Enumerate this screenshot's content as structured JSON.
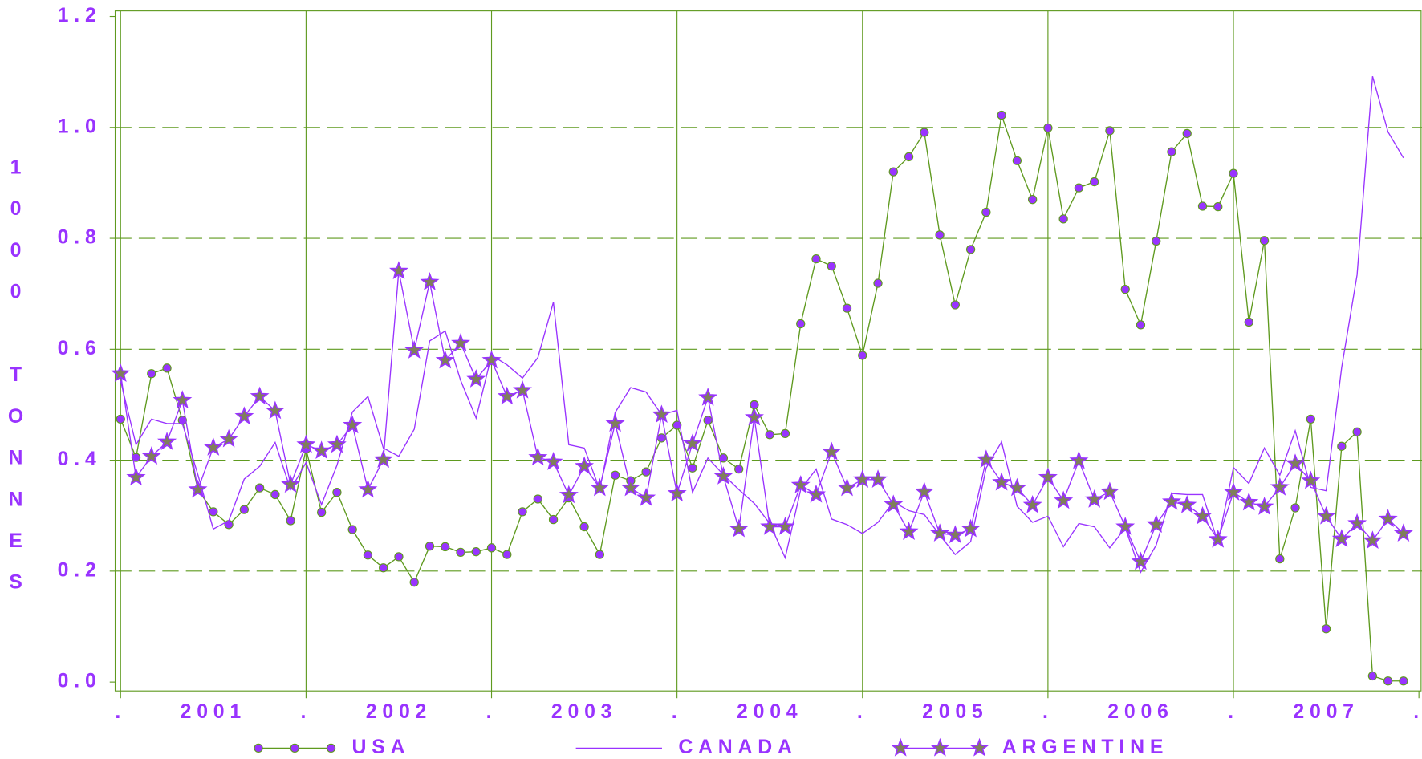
{
  "chart_data": {
    "type": "line",
    "y_label": "1000 TONNES",
    "x": [
      0,
      1,
      2,
      3,
      4,
      5,
      6,
      7,
      8,
      9,
      10,
      11,
      12,
      13,
      14,
      15,
      16,
      17,
      18,
      19,
      20,
      21,
      22,
      23,
      24,
      25,
      26,
      27,
      28,
      29,
      30,
      31,
      32,
      33,
      34,
      35,
      36,
      37,
      38,
      39,
      40,
      41,
      42,
      43,
      44,
      45,
      46,
      47,
      48,
      49,
      50,
      51,
      52,
      53,
      54,
      55,
      56,
      57,
      58,
      59,
      60,
      61,
      62,
      63,
      64,
      65,
      66,
      67,
      68,
      69,
      70,
      71,
      72,
      73,
      74,
      75,
      76,
      77,
      78,
      79,
      80,
      81,
      82,
      83
    ],
    "xlim": [
      -0.35,
      84.2
    ],
    "xticks": [
      {
        "value": 0,
        "label": "."
      },
      {
        "value": 12,
        "label": "."
      },
      {
        "value": 24,
        "label": "."
      },
      {
        "value": 36,
        "label": "."
      },
      {
        "value": 48,
        "label": "."
      },
      {
        "value": 60,
        "label": "."
      },
      {
        "value": 72,
        "label": "."
      },
      {
        "value": 84,
        "label": "."
      }
    ],
    "x_labels": [
      {
        "value": 6,
        "label": "2001"
      },
      {
        "value": 18,
        "label": "2002"
      },
      {
        "value": 30,
        "label": "2003"
      },
      {
        "value": 42,
        "label": "2004"
      },
      {
        "value": 54,
        "label": "2005"
      },
      {
        "value": 66,
        "label": "2006"
      },
      {
        "value": 78,
        "label": "2007"
      }
    ],
    "ylim": [
      -0.016,
      1.21
    ],
    "yticks": [
      {
        "value": 0,
        "label": "0.0"
      },
      0.2,
      0.4,
      0.6,
      0.8,
      {
        "value": 1,
        "label": "1.0"
      },
      1.2
    ],
    "grid": true,
    "series": [
      {
        "name": "USA",
        "color": "#5f9a1f",
        "marker": "circle",
        "marker_color": "#9933ff",
        "values": [
          0.474,
          0.405,
          0.556,
          0.566,
          0.472,
          0.347,
          0.307,
          0.284,
          0.311,
          0.35,
          0.338,
          0.291,
          0.42,
          0.306,
          0.342,
          0.275,
          0.229,
          0.206,
          0.226,
          0.18,
          0.245,
          0.244,
          0.234,
          0.235,
          0.242,
          0.23,
          0.307,
          0.33,
          0.293,
          0.332,
          0.28,
          0.23,
          0.373,
          0.363,
          0.379,
          0.44,
          0.463,
          0.386,
          0.472,
          0.404,
          0.384,
          0.5,
          0.446,
          0.448,
          0.646,
          0.763,
          0.75,
          0.674,
          0.589,
          0.719,
          0.92,
          0.947,
          0.991,
          0.806,
          0.68,
          0.78,
          0.847,
          1.022,
          0.94,
          0.87,
          0.999,
          0.835,
          0.891,
          0.902,
          0.994,
          0.708,
          0.644,
          0.795,
          0.956,
          0.989,
          0.858,
          0.857,
          0.917,
          0.649,
          0.796,
          0.222,
          0.314,
          0.474,
          0.096,
          0.425,
          0.451,
          0.011,
          0.002,
          0.002
        ]
      },
      {
        "name": "CANADA",
        "color": "#9933ff",
        "marker": "none",
        "values": [
          0.543,
          0.428,
          0.474,
          0.466,
          0.466,
          0.374,
          0.276,
          0.291,
          0.366,
          0.389,
          0.432,
          0.347,
          0.396,
          0.32,
          0.391,
          0.487,
          0.515,
          0.422,
          0.407,
          0.456,
          0.615,
          0.633,
          0.544,
          0.476,
          0.589,
          0.572,
          0.548,
          0.585,
          0.685,
          0.428,
          0.422,
          0.347,
          0.486,
          0.531,
          0.523,
          0.482,
          0.49,
          0.342,
          0.404,
          0.374,
          0.347,
          0.322,
          0.286,
          0.224,
          0.347,
          0.384,
          0.294,
          0.284,
          0.268,
          0.288,
          0.325,
          0.309,
          0.302,
          0.265,
          0.23,
          0.253,
          0.386,
          0.433,
          0.317,
          0.288,
          0.299,
          0.244,
          0.286,
          0.28,
          0.242,
          0.278,
          0.198,
          0.247,
          0.34,
          0.338,
          0.338,
          0.252,
          0.387,
          0.358,
          0.422,
          0.373,
          0.453,
          0.351,
          0.345,
          0.567,
          0.734,
          1.092,
          0.992,
          0.945
        ]
      },
      {
        "name": "ARGENTINE",
        "color": "#9933ff",
        "marker": "star",
        "marker_color": "#7f7f5a",
        "values": [
          0.556,
          0.369,
          0.407,
          0.433,
          0.508,
          0.347,
          0.423,
          0.438,
          0.479,
          0.515,
          0.489,
          0.356,
          0.428,
          0.417,
          0.428,
          0.463,
          0.347,
          0.401,
          0.741,
          0.598,
          0.721,
          0.58,
          0.611,
          0.546,
          0.58,
          0.515,
          0.526,
          0.405,
          0.397,
          0.337,
          0.389,
          0.35,
          0.466,
          0.35,
          0.332,
          0.482,
          0.34,
          0.43,
          0.513,
          0.371,
          0.276,
          0.477,
          0.28,
          0.28,
          0.355,
          0.338,
          0.415,
          0.35,
          0.365,
          0.365,
          0.32,
          0.271,
          0.343,
          0.268,
          0.265,
          0.276,
          0.401,
          0.36,
          0.35,
          0.319,
          0.369,
          0.327,
          0.399,
          0.329,
          0.343,
          0.28,
          0.217,
          0.284,
          0.325,
          0.319,
          0.299,
          0.257,
          0.342,
          0.324,
          0.316,
          0.351,
          0.394,
          0.363,
          0.299,
          0.258,
          0.286,
          0.255,
          0.294,
          0.268
        ]
      }
    ]
  }
}
